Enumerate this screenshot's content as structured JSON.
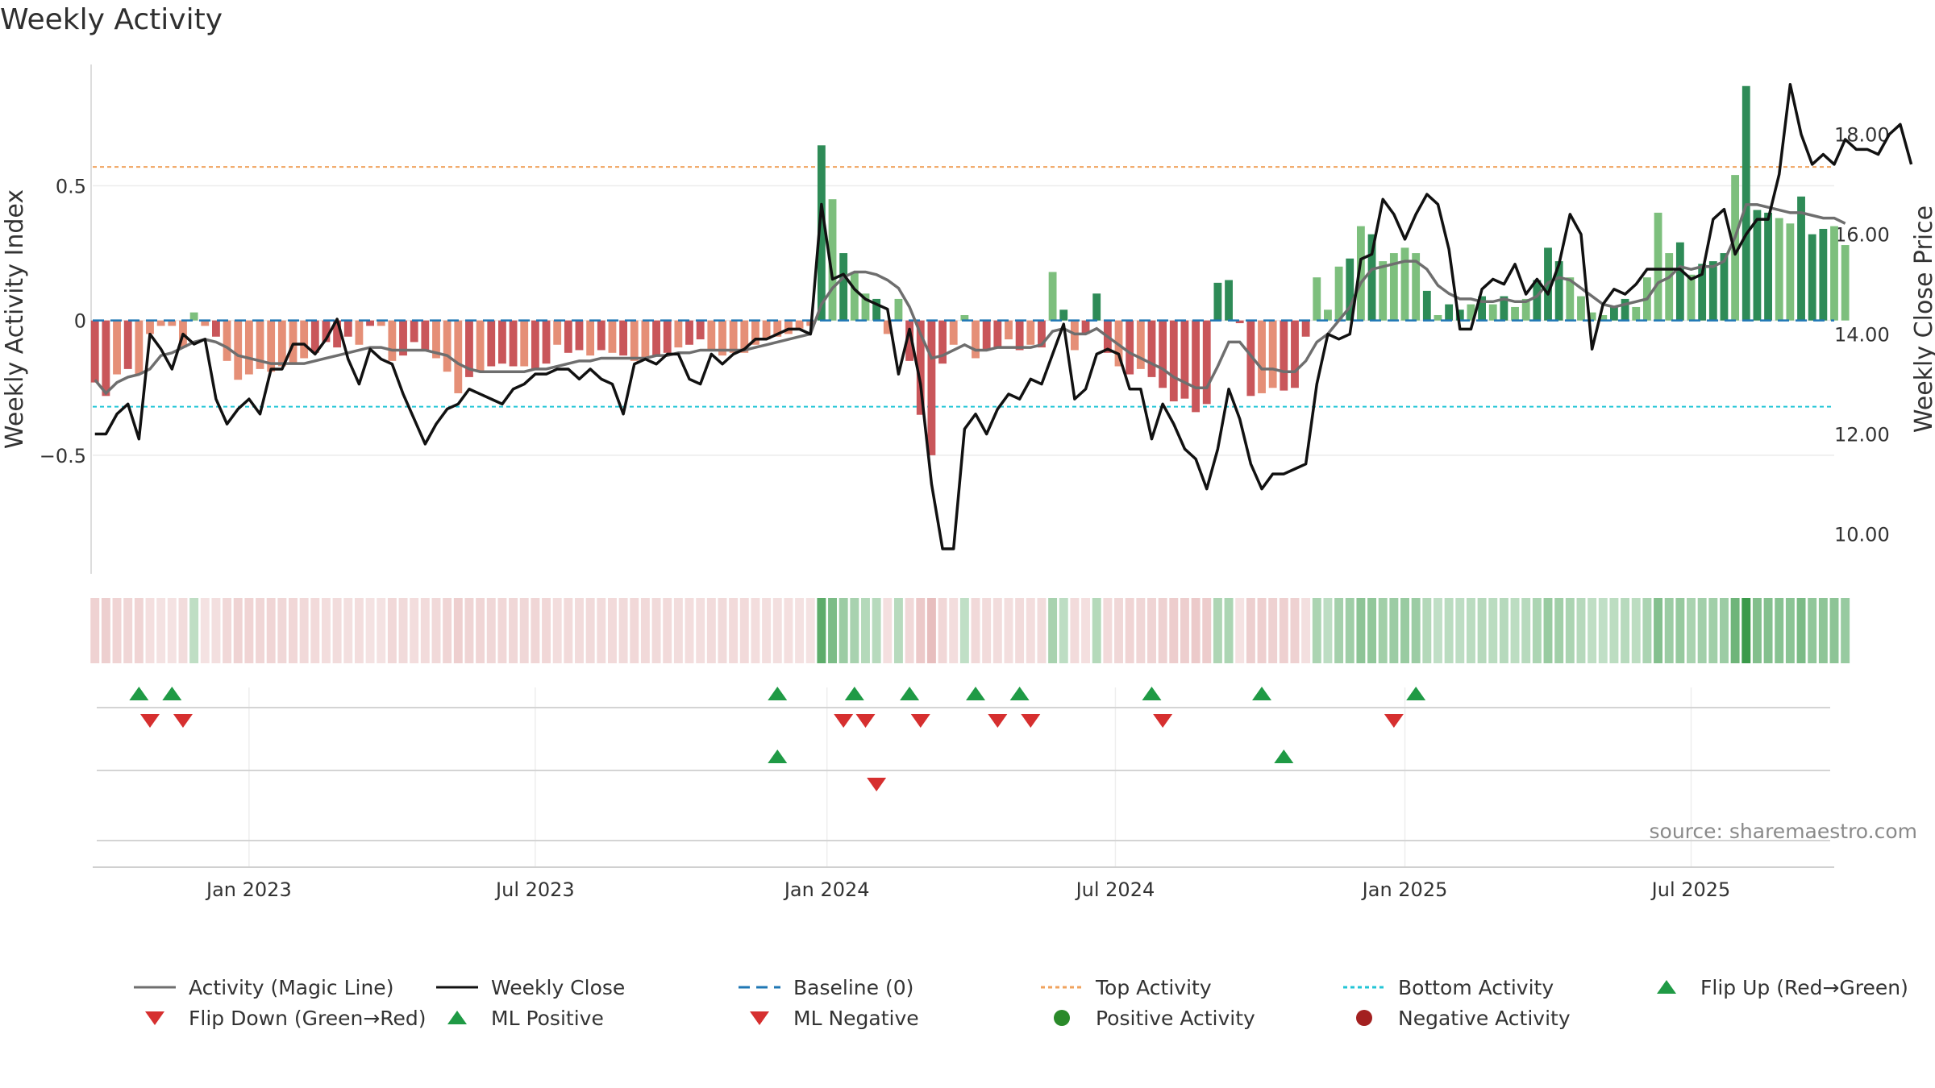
{
  "title": "Weekly Activity",
  "source": "source: sharemaestro.com",
  "colors": {
    "strong_green": "#2e8b57",
    "light_green": "#7dbf7d",
    "strong_red": "#c9565a",
    "light_red": "#e58f77",
    "magic_line": "#6e6e6e",
    "close": "#111111",
    "baseline": "#1f77b4",
    "top": "#f0a35e",
    "bottom": "#22c5d6",
    "flip_up": "#1f9a45",
    "flip_down": "#d62f2f",
    "pos_dot": "#2a8a2a",
    "neg_dot": "#a32020"
  },
  "chart_data": {
    "type": "bar",
    "title": "Weekly Activity",
    "ylabel_left": "Weekly Activity Index",
    "ylabel_right": "Weekly Close Price",
    "y_left_ticks": [
      {
        "v": 0.5,
        "label": "0.5"
      },
      {
        "v": 0,
        "label": "0"
      },
      {
        "v": -0.5,
        "label": "−0.5"
      }
    ],
    "y_right_ticks": [
      {
        "v": 18,
        "label": "18.00"
      },
      {
        "v": 16,
        "label": "16.00"
      },
      {
        "v": 14,
        "label": "14.00"
      },
      {
        "v": 12,
        "label": "12.00"
      },
      {
        "v": 10,
        "label": "10.00"
      }
    ],
    "x_ticks": [
      {
        "label": "Jan 2023",
        "week": 14
      },
      {
        "label": "Jul 2023",
        "week": 40
      },
      {
        "label": "Jan 2024",
        "week": 66.5
      },
      {
        "label": "Jul 2024",
        "week": 92.7
      },
      {
        "label": "Jan 2025",
        "week": 119
      },
      {
        "label": "Jul 2025",
        "week": 145
      }
    ],
    "x_range": [
      -0.2,
      158
    ],
    "y_left_range": [
      -0.94,
      0.95
    ],
    "y_right_range": [
      9.2,
      19.4
    ],
    "top_activity": 0.57,
    "bottom_activity": -0.32,
    "activity": [
      -0.23,
      -0.28,
      -0.2,
      -0.18,
      -0.2,
      -0.05,
      -0.02,
      -0.02,
      -0.1,
      0.03,
      -0.02,
      -0.06,
      -0.15,
      -0.22,
      -0.2,
      -0.18,
      -0.19,
      -0.17,
      -0.16,
      -0.14,
      -0.12,
      -0.08,
      -0.1,
      -0.06,
      -0.09,
      -0.02,
      -0.02,
      -0.15,
      -0.13,
      -0.08,
      -0.11,
      -0.14,
      -0.19,
      -0.27,
      -0.21,
      -0.19,
      -0.17,
      -0.16,
      -0.17,
      -0.17,
      -0.18,
      -0.16,
      -0.09,
      -0.12,
      -0.11,
      -0.13,
      -0.11,
      -0.12,
      -0.13,
      -0.15,
      -0.14,
      -0.13,
      -0.12,
      -0.1,
      -0.09,
      -0.07,
      -0.11,
      -0.13,
      -0.12,
      -0.12,
      -0.09,
      -0.07,
      -0.06,
      -0.05,
      -0.03,
      -0.02,
      0.65,
      0.45,
      0.25,
      0.18,
      0.1,
      0.08,
      -0.05,
      0.08,
      -0.15,
      -0.35,
      -0.5,
      -0.16,
      -0.09,
      0.02,
      -0.14,
      -0.11,
      -0.1,
      -0.07,
      -0.11,
      -0.09,
      -0.1,
      0.18,
      0.04,
      -0.11,
      -0.05,
      0.1,
      -0.12,
      -0.17,
      -0.2,
      -0.18,
      -0.21,
      -0.25,
      -0.3,
      -0.29,
      -0.34,
      -0.31,
      0.14,
      0.15,
      -0.01,
      -0.28,
      -0.27,
      -0.25,
      -0.26,
      -0.25,
      -0.06,
      0.16,
      0.04,
      0.2,
      0.23,
      0.35,
      0.32,
      0.22,
      0.25,
      0.27,
      0.25,
      0.11,
      0.02,
      0.06,
      0.04,
      0.06,
      0.09,
      0.06,
      0.09,
      0.05,
      0.08,
      0.15,
      0.27,
      0.22,
      0.16,
      0.09,
      0.03,
      0.02,
      0.05,
      0.08,
      0.05,
      0.16,
      0.4,
      0.25,
      0.29,
      0.17,
      0.21,
      0.22,
      0.25,
      0.54,
      0.87,
      0.41,
      0.4,
      0.38,
      0.36,
      0.46,
      0.32,
      0.34,
      0.35,
      0.28
    ],
    "activity_strong_weeks": [
      0,
      1,
      3,
      11,
      20,
      21,
      22,
      23,
      25,
      28,
      29,
      30,
      34,
      36,
      37,
      38,
      40,
      41,
      43,
      44,
      46,
      48,
      51,
      52,
      54,
      55,
      66,
      68,
      71,
      74,
      75,
      76,
      77,
      81,
      82,
      84,
      86,
      88,
      90,
      91,
      92,
      94,
      96,
      97,
      98,
      99,
      100,
      101,
      102,
      103,
      104,
      105,
      108,
      109,
      110,
      114,
      116,
      121,
      123,
      124,
      126,
      128,
      131,
      132,
      133,
      138,
      139,
      144,
      146,
      147,
      148,
      150,
      151,
      152,
      155,
      156,
      157
    ],
    "magic_line": [
      -0.22,
      -0.27,
      -0.23,
      -0.21,
      -0.2,
      -0.18,
      -0.13,
      -0.12,
      -0.1,
      -0.08,
      -0.07,
      -0.08,
      -0.1,
      -0.13,
      -0.14,
      -0.15,
      -0.16,
      -0.16,
      -0.16,
      -0.16,
      -0.15,
      -0.14,
      -0.13,
      -0.12,
      -0.11,
      -0.1,
      -0.1,
      -0.11,
      -0.11,
      -0.11,
      -0.11,
      -0.12,
      -0.13,
      -0.16,
      -0.18,
      -0.19,
      -0.19,
      -0.19,
      -0.19,
      -0.19,
      -0.18,
      -0.18,
      -0.17,
      -0.16,
      -0.15,
      -0.15,
      -0.14,
      -0.14,
      -0.14,
      -0.14,
      -0.14,
      -0.13,
      -0.13,
      -0.12,
      -0.12,
      -0.11,
      -0.11,
      -0.11,
      -0.11,
      -0.11,
      -0.1,
      -0.09,
      -0.08,
      -0.07,
      -0.06,
      -0.05,
      0.06,
      0.12,
      0.16,
      0.18,
      0.18,
      0.17,
      0.15,
      0.12,
      0.05,
      -0.05,
      -0.14,
      -0.13,
      -0.11,
      -0.09,
      -0.11,
      -0.11,
      -0.1,
      -0.1,
      -0.1,
      -0.1,
      -0.09,
      -0.04,
      -0.03,
      -0.05,
      -0.05,
      -0.03,
      -0.06,
      -0.09,
      -0.12,
      -0.14,
      -0.16,
      -0.18,
      -0.21,
      -0.23,
      -0.25,
      -0.25,
      -0.17,
      -0.08,
      -0.08,
      -0.13,
      -0.18,
      -0.18,
      -0.19,
      -0.19,
      -0.15,
      -0.08,
      -0.05,
      0.0,
      0.05,
      0.14,
      0.19,
      0.2,
      0.21,
      0.22,
      0.22,
      0.19,
      0.13,
      0.1,
      0.08,
      0.08,
      0.07,
      0.07,
      0.08,
      0.07,
      0.07,
      0.09,
      0.14,
      0.16,
      0.15,
      0.12,
      0.09,
      0.06,
      0.05,
      0.06,
      0.07,
      0.08,
      0.14,
      0.16,
      0.2,
      0.19,
      0.2,
      0.2,
      0.22,
      0.31,
      0.43,
      0.43,
      0.42,
      0.41,
      0.4,
      0.4,
      0.39,
      0.38,
      0.38,
      0.36
    ],
    "weekly_close": [
      12.0,
      12.0,
      12.4,
      12.6,
      11.9,
      14.0,
      13.7,
      13.3,
      14.0,
      13.8,
      13.9,
      12.7,
      12.2,
      12.5,
      12.7,
      12.4,
      13.3,
      13.3,
      13.8,
      13.8,
      13.6,
      13.9,
      14.3,
      13.5,
      13.0,
      13.7,
      13.5,
      13.4,
      12.8,
      12.3,
      11.8,
      12.2,
      12.5,
      12.6,
      12.9,
      12.8,
      12.7,
      12.6,
      12.9,
      13.0,
      13.2,
      13.2,
      13.3,
      13.3,
      13.1,
      13.3,
      13.1,
      13.0,
      12.4,
      13.4,
      13.5,
      13.4,
      13.6,
      13.6,
      13.1,
      13.0,
      13.6,
      13.4,
      13.6,
      13.7,
      13.9,
      13.9,
      14.0,
      14.1,
      14.1,
      14.0,
      16.6,
      15.1,
      15.2,
      14.9,
      14.7,
      14.6,
      14.5,
      13.2,
      14.1,
      13.0,
      11.0,
      9.7,
      9.7,
      12.1,
      12.4,
      12.0,
      12.5,
      12.8,
      12.7,
      13.1,
      13.0,
      13.6,
      14.2,
      12.7,
      12.9,
      13.6,
      13.7,
      13.6,
      12.9,
      12.9,
      11.9,
      12.6,
      12.2,
      11.7,
      11.5,
      10.9,
      11.7,
      12.9,
      12.3,
      11.4,
      10.9,
      11.2,
      11.2,
      11.3,
      11.4,
      13.0,
      14.0,
      13.9,
      14.0,
      15.5,
      15.6,
      16.7,
      16.4,
      15.9,
      16.4,
      16.8,
      16.6,
      15.7,
      14.1,
      14.1,
      14.9,
      15.1,
      15.0,
      15.4,
      14.8,
      15.1,
      14.8,
      15.4,
      16.4,
      16.0,
      13.7,
      14.6,
      14.9,
      14.8,
      15.0,
      15.3,
      15.3,
      15.3,
      15.3,
      15.1,
      15.2,
      16.3,
      16.5,
      15.6,
      16.0,
      16.3,
      16.3,
      17.2,
      19.0,
      18.0,
      17.4,
      17.6,
      17.4,
      17.9,
      17.7,
      17.7,
      17.6,
      18.0,
      18.2,
      17.4
    ],
    "flip_up_weeks": [
      4,
      7,
      62,
      69,
      74,
      80,
      84,
      96,
      106,
      120
    ],
    "flip_down_weeks": [
      5,
      8,
      68,
      70,
      75,
      82,
      85,
      97,
      118
    ],
    "ml_positive_weeks": [
      62,
      108
    ],
    "ml_negative_weeks": [
      71
    ]
  },
  "legend": {
    "row1": [
      "Activity (Magic Line)",
      "Weekly Close",
      "Baseline (0)",
      "Top Activity",
      "Bottom Activity",
      "Flip Up (Red→Green)"
    ],
    "row2": [
      "Flip Down (Green→Red)",
      "ML Positive",
      "ML Negative",
      "Positive Activity",
      "Negative Activity"
    ]
  }
}
